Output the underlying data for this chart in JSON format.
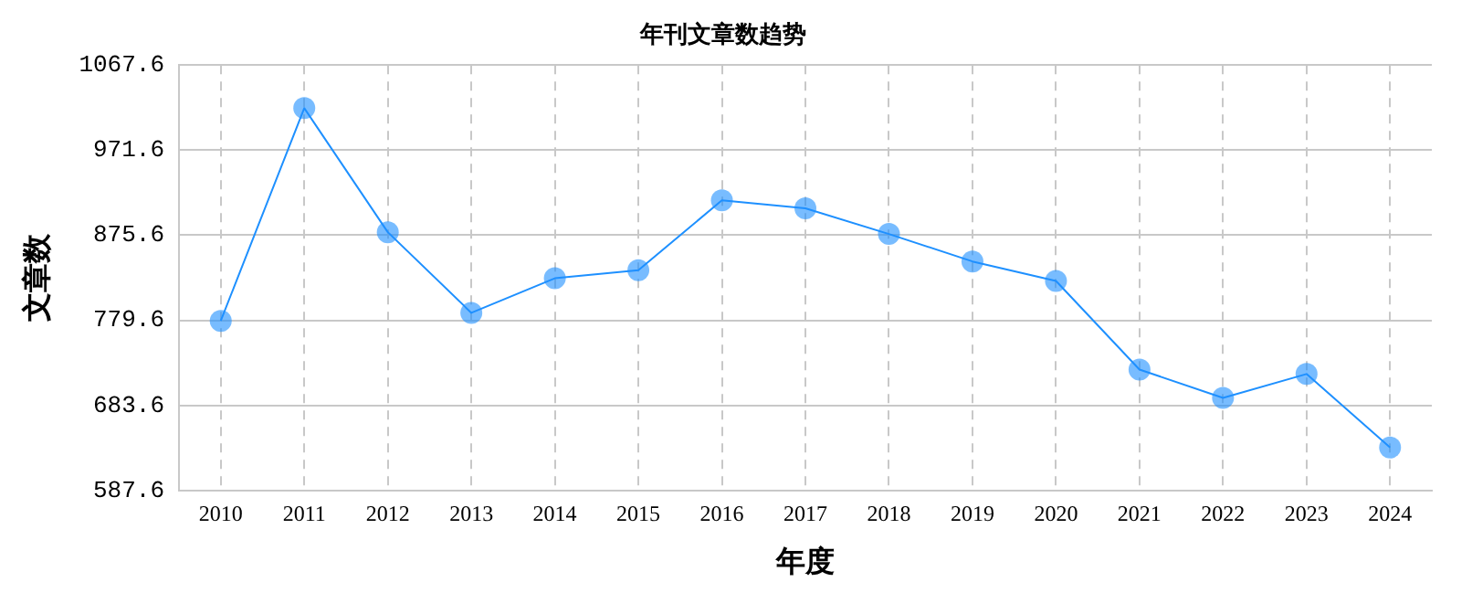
{
  "chart_data": {
    "type": "line",
    "title": "年刊文章数趋势",
    "xlabel": "年度",
    "ylabel": "文章数",
    "categories": [
      "2010",
      "2011",
      "2012",
      "2013",
      "2014",
      "2015",
      "2016",
      "2017",
      "2018",
      "2019",
      "2020",
      "2021",
      "2022",
      "2023",
      "2024"
    ],
    "series": [
      {
        "color": "#1e90ff",
        "values": [
          779,
          1019,
          879,
          788,
          827,
          836,
          915,
          906,
          877,
          846,
          824,
          724,
          692,
          719,
          636
        ]
      }
    ],
    "ylim": [
      587.6,
      1067.6
    ],
    "yticks": [
      587.6,
      683.6,
      779.6,
      875.6,
      971.6,
      1067.6
    ],
    "grid": true,
    "marker": "circle",
    "line_style": "solid",
    "legend": false
  }
}
